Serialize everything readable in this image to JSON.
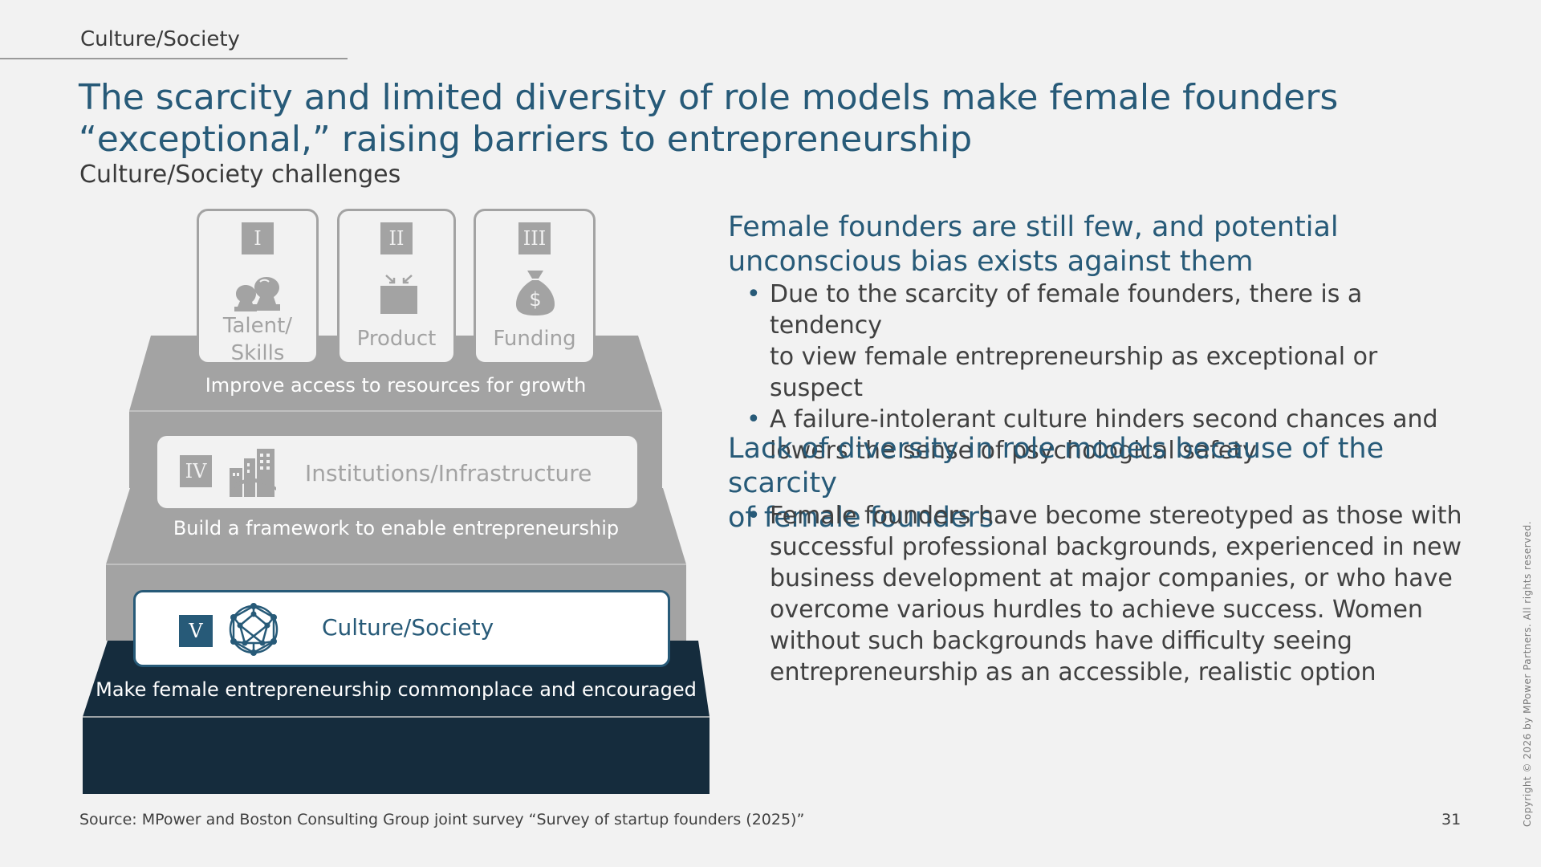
{
  "header": {
    "section": "Culture/Society",
    "title_line1": "The scarcity and limited diversity of role models make female founders",
    "title_line2": "“exceptional,” raising barriers to entrepreneurship",
    "subtitle": "Culture/Society challenges"
  },
  "pyramid": {
    "pillars": [
      {
        "numeral": "I",
        "label_line1": "Talent/",
        "label_line2": "Skills",
        "icon": "people-icon"
      },
      {
        "numeral": "II",
        "label": "Product",
        "icon": "product-box-icon"
      },
      {
        "numeral": "III",
        "label": "Funding",
        "icon": "money-bag-icon"
      }
    ],
    "tier1_caption": "Improve access to resources for growth",
    "institutions": {
      "numeral": "IV",
      "label": "Institutions/Infrastructure",
      "icon": "buildings-icon"
    },
    "tier2_caption": "Build a framework to enable entrepreneurship",
    "culture": {
      "numeral": "V",
      "label": "Culture/Society",
      "icon": "network-sphere-icon"
    },
    "tier3_caption": "Make female entrepreneurship commonplace and encouraged",
    "colors": {
      "grey": "#a3a3a3",
      "dark_navy": "#152c3d",
      "accent": "#275a78"
    }
  },
  "right": {
    "section1": {
      "heading_line1": "Female founders are still few, and potential",
      "heading_line2": "unconscious bias exists against them",
      "bullets": [
        {
          "line1": "Due to the scarcity of female founders, there is a tendency",
          "line2": "to view female entrepreneurship as exceptional or suspect"
        },
        {
          "line1": "A failure-intolerant culture hinders second chances and",
          "line2": "lowers the sense of psychological safety"
        }
      ]
    },
    "section2": {
      "heading_line1": "Lack of diversity in role models because of the scarcity",
      "heading_line2": "of female founders",
      "bullet_lines": [
        "Female founders have become stereotyped as those with",
        "successful professional backgrounds, experienced in new",
        "business development at major companies, or who have",
        "overcome various hurdles to achieve success. Women",
        "without such backgrounds have difficulty seeing",
        "entrepreneurship as an accessible, realistic option"
      ]
    }
  },
  "footer": {
    "source": "Source: MPower and Boston Consulting Group joint survey “Survey of startup founders (2025)”",
    "page_number": "31",
    "copyright": "Copyright © 2026 by MPower Partners. All rights reserved."
  }
}
